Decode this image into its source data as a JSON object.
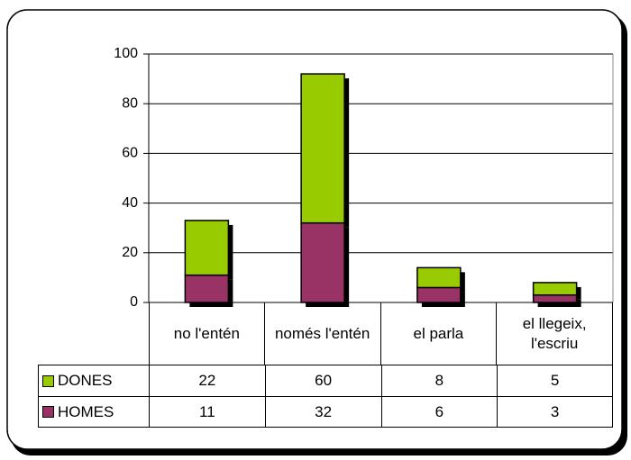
{
  "chart_data": {
    "type": "stacked-bar",
    "categories": [
      "no l'entén",
      "només l'entén",
      "el parla",
      "el llegeix, l'escriu"
    ],
    "series": [
      {
        "name": "DONES",
        "color": "#99cc00",
        "values": [
          22,
          60,
          8,
          5
        ]
      },
      {
        "name": "HOMES",
        "color": "#993366",
        "values": [
          11,
          32,
          6,
          3
        ]
      }
    ],
    "ylim": [
      0,
      100
    ],
    "yticks": [
      0,
      20,
      40,
      60,
      80,
      100
    ],
    "grid": true,
    "legend": "data-table"
  }
}
